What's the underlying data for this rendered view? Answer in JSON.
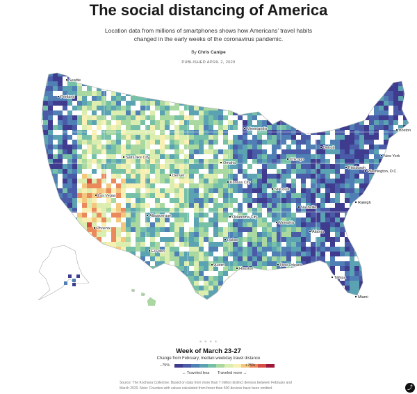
{
  "header": {
    "title": "The social distancing of America",
    "dek": "Location data from millions of smartphones shows how Americans’ travel habits changed in the early weeks of the coronavirus pandemic.",
    "byline_prefix": "By",
    "author": "Chris Canipe",
    "published": "PUBLISHED APRIL 2, 2020"
  },
  "map": {
    "cities": [
      {
        "name": "Seattle"
      },
      {
        "name": "Portland"
      },
      {
        "name": "Salt Lake City"
      },
      {
        "name": "Denver"
      },
      {
        "name": "Las Vegas"
      },
      {
        "name": "Phoenix"
      },
      {
        "name": "Albuquerque"
      },
      {
        "name": "El Paso"
      },
      {
        "name": "Minneapolis"
      },
      {
        "name": "Omaha"
      },
      {
        "name": "Kansas City"
      },
      {
        "name": "Oklahoma City"
      },
      {
        "name": "Dallas"
      },
      {
        "name": "Austin"
      },
      {
        "name": "Houston"
      },
      {
        "name": "New Orleans"
      },
      {
        "name": "Memphis"
      },
      {
        "name": "St. Louis"
      },
      {
        "name": "Chicago"
      },
      {
        "name": "Detroit"
      },
      {
        "name": "Nashville"
      },
      {
        "name": "Atlanta"
      },
      {
        "name": "Pittsburgh"
      },
      {
        "name": "Raleigh"
      },
      {
        "name": "Washington, D.C."
      },
      {
        "name": "New York"
      },
      {
        "name": "Boston"
      },
      {
        "name": "Tampa"
      },
      {
        "name": "Miami"
      }
    ]
  },
  "carousel": {
    "indicator": "● ● ● ●"
  },
  "legend": {
    "week": "Week of March 23-27",
    "subtitle": "Change from February, median weekday travel distance",
    "min_label": "−75%",
    "max_label": "+75%",
    "less_label": "← Traveled less",
    "more_label": "Traveled more →",
    "colors": [
      "#3f3b8f",
      "#4a5ba8",
      "#4f7fb5",
      "#5ba2b2",
      "#76c0a8",
      "#a9d8a0",
      "#dcedb0",
      "#f7f0b2",
      "#f4c77e",
      "#ea8a5c",
      "#d74d46",
      "#9e1638"
    ]
  },
  "footer": {
    "source": "Source: The Kochava Collective. Based on data from more than 7 million distinct devices between February and March 2020. Note: Counties with values calculated from fewer than 500 devices have been omitted."
  },
  "share": {
    "icon": "share-icon"
  }
}
